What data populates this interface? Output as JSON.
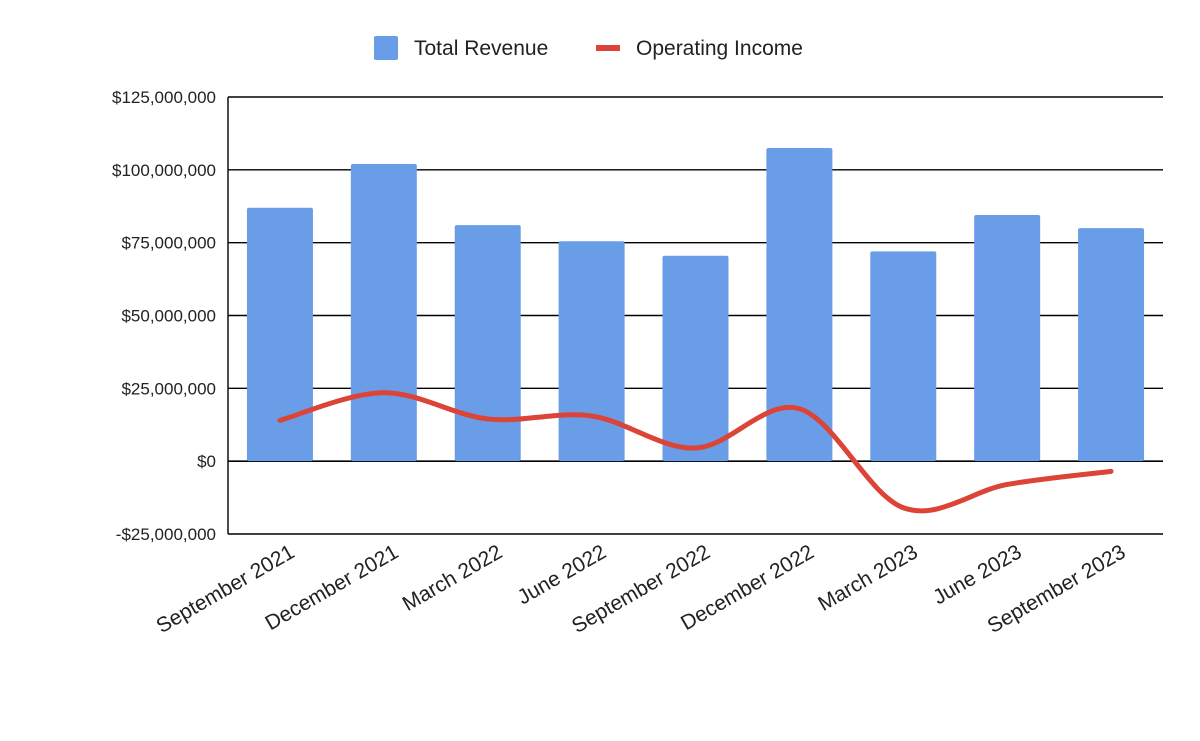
{
  "chart_data": {
    "type": "bar",
    "categories": [
      "September 2021",
      "December 2021",
      "March 2022",
      "June 2022",
      "September 2022",
      "December 2022",
      "March 2023",
      "June 2023",
      "September 2023"
    ],
    "series": [
      {
        "name": "Total Revenue",
        "type": "bar",
        "color": "#6a9de8",
        "values": [
          87000000,
          102000000,
          81000000,
          75500000,
          70500000,
          107500000,
          72000000,
          84500000,
          80000000
        ]
      },
      {
        "name": "Operating Income",
        "type": "line",
        "color": "#dc4437",
        "values": [
          14000000,
          23500000,
          14500000,
          15500000,
          4500000,
          18000000,
          -16000000,
          -8000000,
          -3500000
        ]
      }
    ],
    "ylim": [
      -25000000,
      125000000
    ],
    "yticks": [
      -25000000,
      0,
      25000000,
      50000000,
      75000000,
      100000000,
      125000000
    ],
    "ytick_labels": [
      "-$25,000,000",
      "$0",
      "$25,000,000",
      "$50,000,000",
      "$75,000,000",
      "$100,000,000",
      "$125,000,000"
    ],
    "grid": true,
    "legend_position": "top"
  }
}
